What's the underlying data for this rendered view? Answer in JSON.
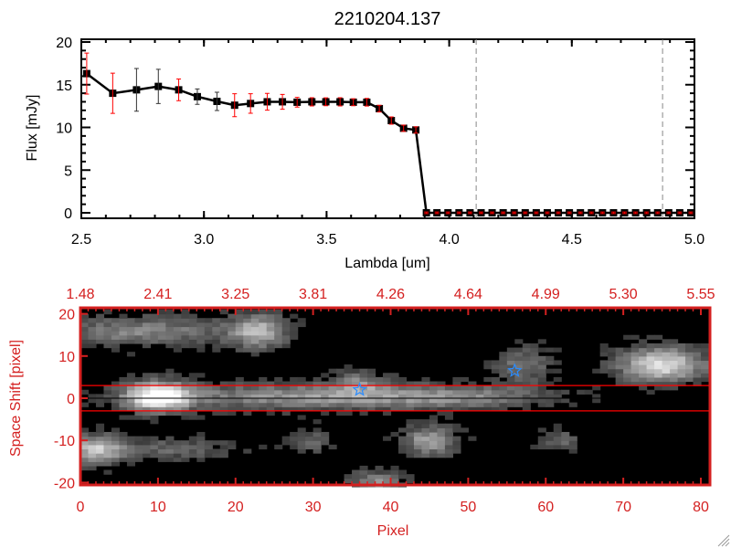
{
  "chart_data": [
    {
      "type": "line",
      "title": "2210204.137",
      "xlabel": "Lambda [um]",
      "ylabel": "Flux [mJy]",
      "xlim": [
        2.5,
        5.0
      ],
      "ylim": [
        0,
        20
      ],
      "xticks": [
        "2.5",
        "3.0",
        "3.5",
        "4.0",
        "4.5",
        "5.0"
      ],
      "yticks": [
        "0",
        "5",
        "10",
        "15",
        "20"
      ],
      "series": [
        {
          "name": "flux",
          "x": [
            2.522,
            2.628,
            2.725,
            2.814,
            2.897,
            2.973,
            3.053,
            3.125,
            3.19,
            3.258,
            3.32,
            3.38,
            3.44,
            3.497,
            3.555,
            3.609,
            3.664,
            3.715,
            3.764,
            3.814,
            3.864,
            3.907,
            3.95,
            3.995,
            4.04,
            4.085,
            4.13,
            4.175,
            4.22,
            4.265,
            4.31,
            4.355,
            4.4,
            4.445,
            4.49,
            4.535,
            4.58,
            4.625,
            4.67,
            4.715,
            4.76,
            4.805,
            4.85,
            4.895,
            4.94,
            4.985
          ],
          "y": [
            16.3,
            14.0,
            14.4,
            14.8,
            14.4,
            13.6,
            13.05,
            12.6,
            12.8,
            13.0,
            13.0,
            12.95,
            13.0,
            13.0,
            13.0,
            12.95,
            12.95,
            12.2,
            10.8,
            9.9,
            9.7,
            0,
            0,
            0,
            0,
            0,
            0,
            0,
            0,
            0,
            0,
            0,
            0,
            0,
            0,
            0,
            0,
            0,
            0,
            0,
            0,
            0,
            0,
            0,
            0,
            0
          ],
          "yerr": [
            2.4,
            2.35,
            2.5,
            2.0,
            1.27,
            0.9,
            1.07,
            1.34,
            1.14,
            0.98,
            0.87,
            0.57,
            0.48,
            0.46,
            0.48,
            0.41,
            0.45,
            0.39,
            0.43,
            0.37,
            0.37,
            0.1,
            0.1,
            0.1,
            0.1,
            0.1,
            0.1,
            0.1,
            0.1,
            0.1,
            0.1,
            0.1,
            0.1,
            0.1,
            0.1,
            0.1,
            0.1,
            0.1,
            0.1,
            0.1,
            0.1,
            0.1,
            0.1,
            0.1,
            0.1,
            0.1
          ]
        }
      ],
      "vlines": [
        4.11,
        4.87
      ],
      "colors": {
        "line": "#000000",
        "errorbar": "#ff0000",
        "vline": "#888888"
      }
    },
    {
      "type": "heatmap",
      "xlabel": "Pixel",
      "ylabel": "Space Shift [pixel]",
      "xlim": [
        0,
        81
      ],
      "ylim": [
        -21,
        21
      ],
      "xticks": [
        "0",
        "10",
        "20",
        "30",
        "40",
        "50",
        "60",
        "70",
        "80"
      ],
      "yticks": [
        "20",
        "10",
        "0",
        "-10",
        "-20"
      ],
      "top_axis_ticks": [
        "1.48",
        "2.41",
        "3.25",
        "3.81",
        "4.26",
        "4.64",
        "4.99",
        "5.30",
        "5.55"
      ],
      "aperture": [
        -3,
        3
      ],
      "center": 0,
      "stars": [
        {
          "x": 36,
          "y": 2
        },
        {
          "x": 56,
          "y": 6.5
        }
      ],
      "sources": [
        {
          "x": 10,
          "y": 0.5,
          "amp": 1.0,
          "sx": 3,
          "sy": 2.5
        },
        {
          "x": 30,
          "y": 0.5,
          "amp": 0.55,
          "sx": 14,
          "sy": 2.2
        },
        {
          "x": 50,
          "y": 0.5,
          "amp": 0.3,
          "sx": 8,
          "sy": 2
        },
        {
          "x": 2,
          "y": -12,
          "amp": 0.7,
          "sx": 2.5,
          "sy": 2.5
        },
        {
          "x": 12,
          "y": -12,
          "amp": 0.3,
          "sx": 6,
          "sy": 2
        },
        {
          "x": 23,
          "y": 16,
          "amp": 0.6,
          "sx": 2.5,
          "sy": 3
        },
        {
          "x": 8,
          "y": 16,
          "amp": 0.45,
          "sx": 9,
          "sy": 2.5
        },
        {
          "x": 45,
          "y": -10,
          "amp": 0.6,
          "sx": 2.5,
          "sy": 2.5
        },
        {
          "x": 75,
          "y": 8,
          "amp": 0.85,
          "sx": 4,
          "sy": 3
        },
        {
          "x": 57,
          "y": 8,
          "amp": 0.4,
          "sx": 2.5,
          "sy": 3
        },
        {
          "x": 38,
          "y": -20,
          "amp": 0.5,
          "sx": 2.5,
          "sy": 2
        },
        {
          "x": 30,
          "y": -10,
          "amp": 0.3,
          "sx": 2,
          "sy": 2
        },
        {
          "x": 62,
          "y": -10,
          "amp": 0.3,
          "sx": 2,
          "sy": 2
        },
        {
          "x": 36,
          "y": 4,
          "amp": 0.35,
          "sx": 2.5,
          "sy": 2
        }
      ],
      "colors": {
        "axis": "#d42020",
        "aperture": "#ff0000",
        "star": "#2a8cff"
      }
    }
  ]
}
